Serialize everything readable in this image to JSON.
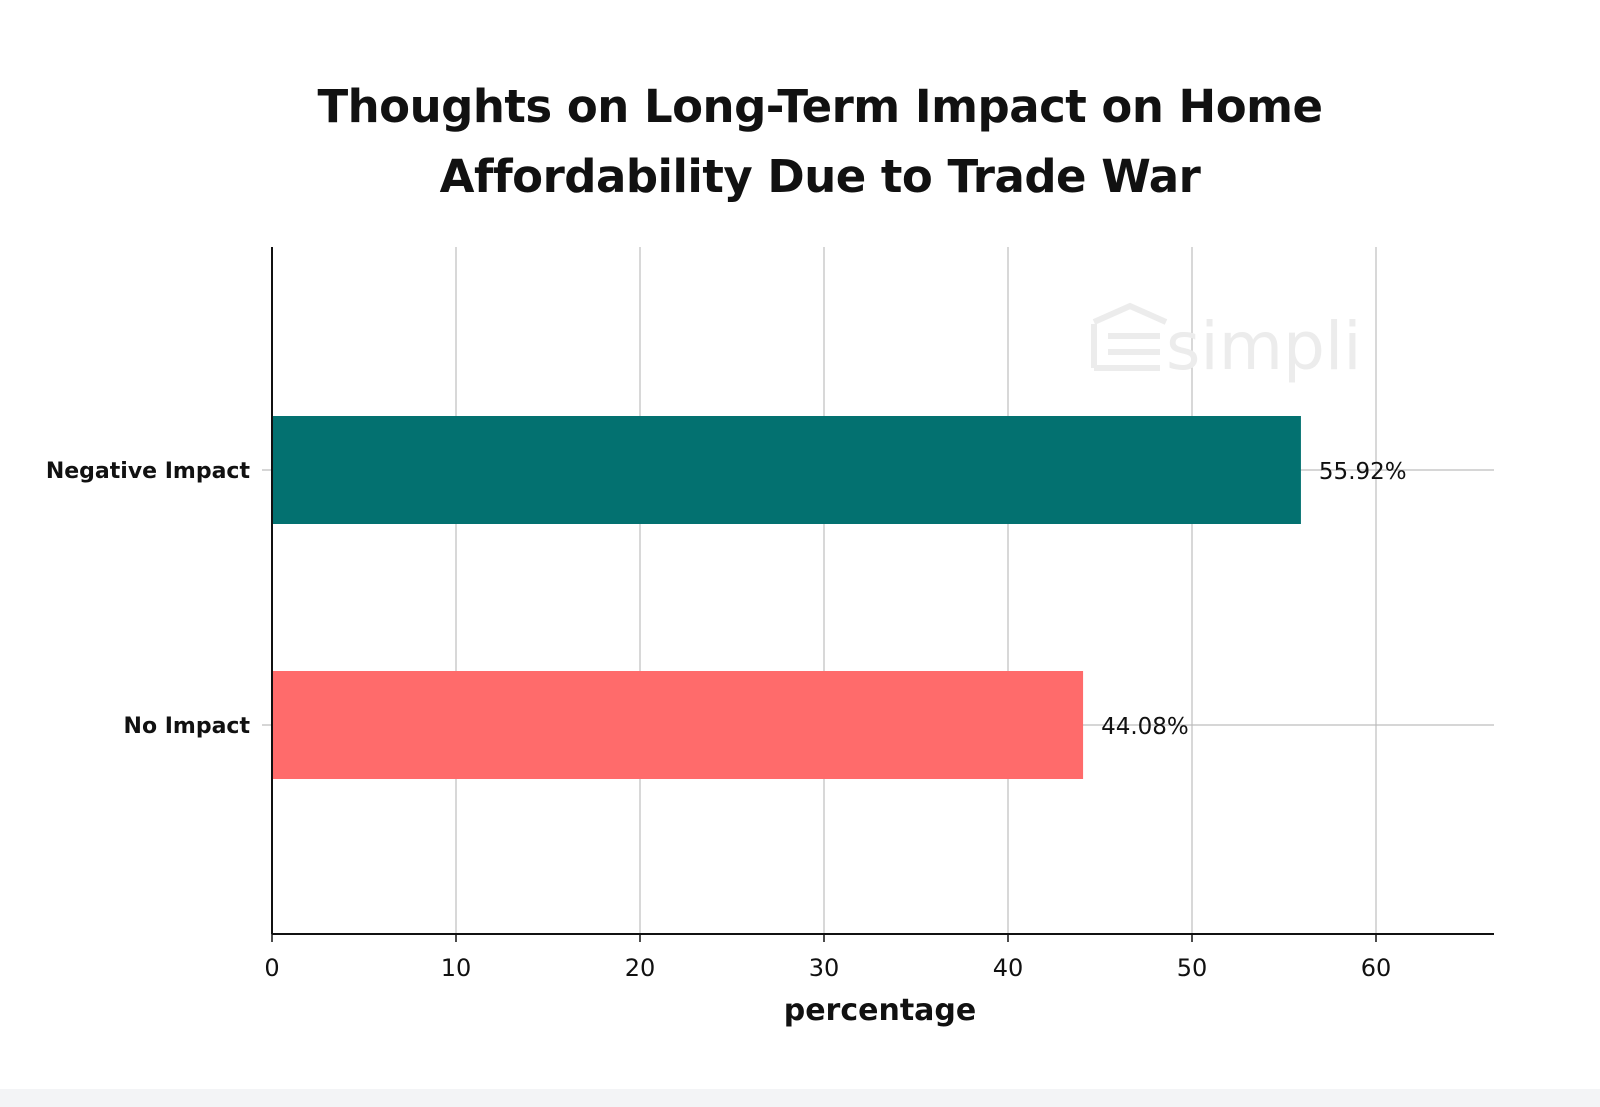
{
  "chart_data": {
    "type": "bar",
    "orientation": "horizontal",
    "title": "Thoughts on Long-Term Impact on Home Affordability Due to Trade War",
    "xlabel": "percentage",
    "ylabel": "",
    "categories": [
      "Negative Impact",
      "No Impact"
    ],
    "values": [
      55.92,
      44.08
    ],
    "data_labels": [
      "55.92%",
      "44.08%"
    ],
    "bar_colors": [
      "#037170",
      "#ff6b6b"
    ],
    "xlim": [
      0,
      66
    ],
    "xticks": [
      0,
      10,
      20,
      30,
      40,
      50,
      60
    ],
    "grid": "vertical and horizontal at categories",
    "legend": "none"
  },
  "watermark": {
    "text": "simpli",
    "icon": "house-icon",
    "color": "#ececec"
  }
}
